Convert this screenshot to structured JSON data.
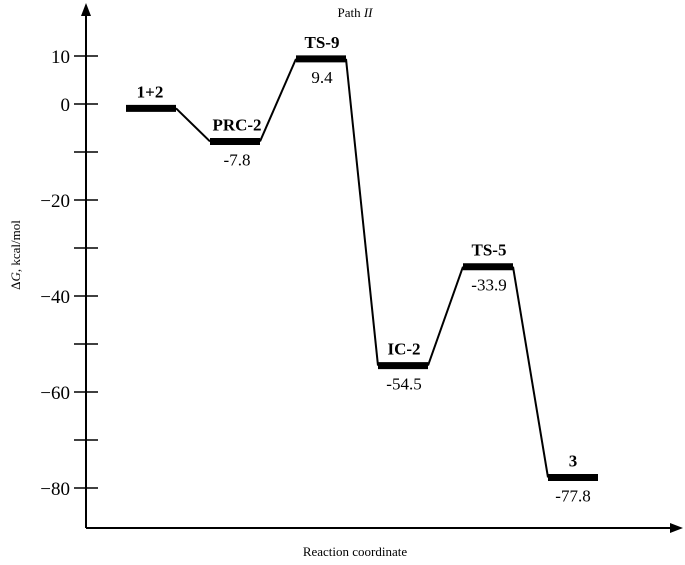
{
  "chart_data": {
    "type": "line",
    "title": "Path II",
    "title_parts": {
      "prefix": "Path ",
      "italic": "II"
    },
    "xlabel": "Reaction coordinate",
    "ylabel": "ΔG, kcal/mol",
    "ylabel_parts": {
      "prefix": "Δ",
      "italic": "G",
      "suffix": ", kcal/mol"
    },
    "ylim": [
      -90,
      19
    ],
    "y_ticks": [
      10,
      0,
      -10,
      -20,
      -30,
      -40,
      -50,
      -60,
      -70,
      -80
    ],
    "y_tick_labels": [
      {
        "value": 10,
        "label": "10"
      },
      {
        "value": 0,
        "label": "0"
      },
      {
        "value": -20,
        "label": "−20"
      },
      {
        "value": -40,
        "label": "−40"
      },
      {
        "value": -60,
        "label": "−60"
      },
      {
        "value": -80,
        "label": "−80"
      }
    ],
    "grid": false,
    "legend": "none",
    "line_color": "#000000",
    "states": [
      {
        "name": "1+2",
        "value": -0.9,
        "value_label": ""
      },
      {
        "name": "PRC-2",
        "value": -7.8,
        "value_label": "-7.8"
      },
      {
        "name": "TS-9",
        "value": 9.4,
        "value_label": "9.4"
      },
      {
        "name": "IC-2",
        "value": -54.5,
        "value_label": "-54.5"
      },
      {
        "name": "TS-5",
        "value": -33.9,
        "value_label": "-33.9"
      },
      {
        "name": "3",
        "value": -77.8,
        "value_label": "-77.8"
      }
    ]
  }
}
